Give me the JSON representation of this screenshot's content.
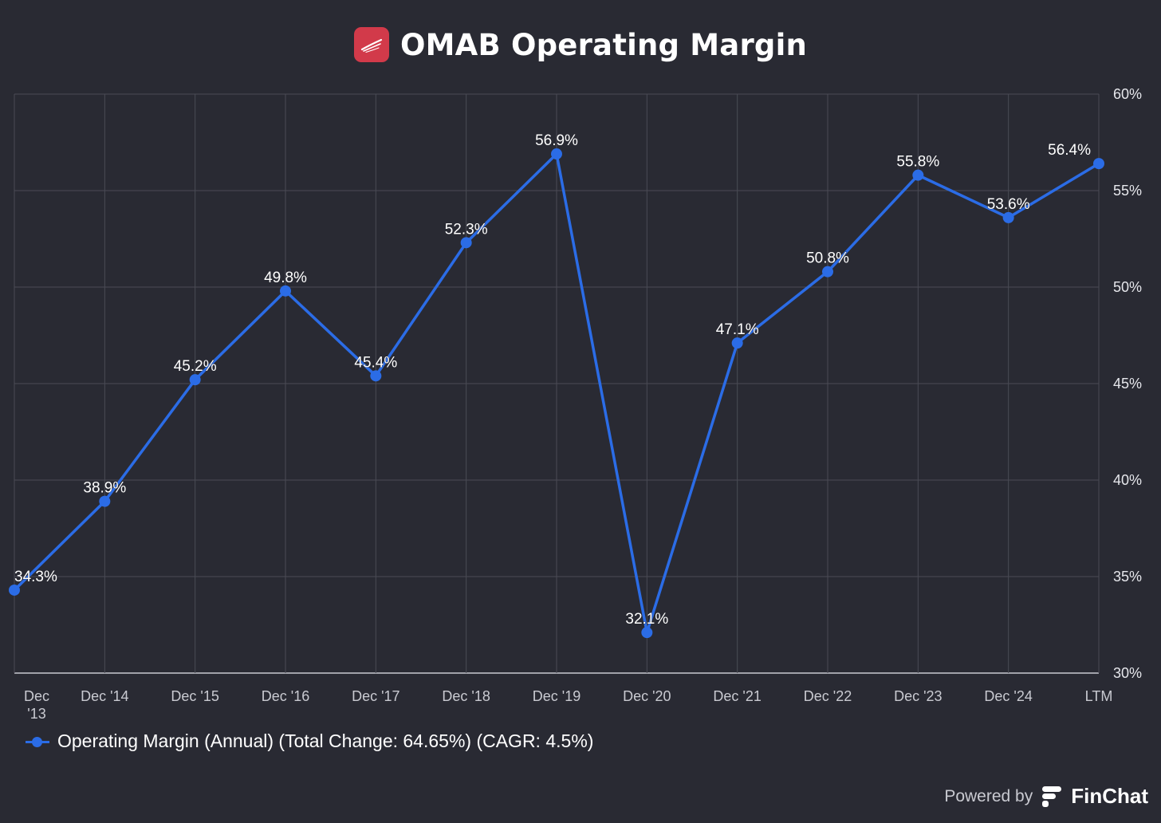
{
  "header": {
    "title": "OMAB Operating Margin",
    "logo_icon": "airline-swoosh-icon"
  },
  "legend": {
    "label": "Operating Margin (Annual) (Total Change: 64.65%) (CAGR: 4.5%)"
  },
  "footer": {
    "powered_by": "Powered by",
    "brand": "FinChat",
    "brand_icon": "finchat-f-icon"
  },
  "colors": {
    "background": "#292a33",
    "series": "#2b6ce6",
    "grid": "#4a4b55",
    "logo_bg": "#d23a4a"
  },
  "chart_data": {
    "type": "line",
    "title": "OMAB Operating Margin",
    "categories": [
      "Dec\n'13",
      "Dec '14",
      "Dec '15",
      "Dec '16",
      "Dec '17",
      "Dec '18",
      "Dec '19",
      "Dec '20",
      "Dec '21",
      "Dec '22",
      "Dec '23",
      "Dec '24",
      "LTM"
    ],
    "series": [
      {
        "name": "Operating Margin (Annual) (Total Change: 64.65%) (CAGR: 4.5%)",
        "values": [
          34.3,
          38.9,
          45.2,
          49.8,
          45.4,
          52.3,
          56.9,
          32.1,
          47.1,
          50.8,
          55.8,
          53.6,
          56.4
        ],
        "labels": [
          "34.3%",
          "38.9%",
          "45.2%",
          "49.8%",
          "45.4%",
          "52.3%",
          "56.9%",
          "32.1%",
          "47.1%",
          "50.8%",
          "55.8%",
          "53.6%",
          "56.4%"
        ]
      }
    ],
    "ylim": [
      30,
      60
    ],
    "yticks": [
      30,
      35,
      40,
      45,
      50,
      55,
      60
    ],
    "ytick_labels": [
      "30%",
      "35%",
      "40%",
      "45%",
      "50%",
      "55%",
      "60%"
    ],
    "y_axis_side": "right",
    "grid": true,
    "legend_position": "bottom-left",
    "xlabel": "",
    "ylabel": ""
  }
}
